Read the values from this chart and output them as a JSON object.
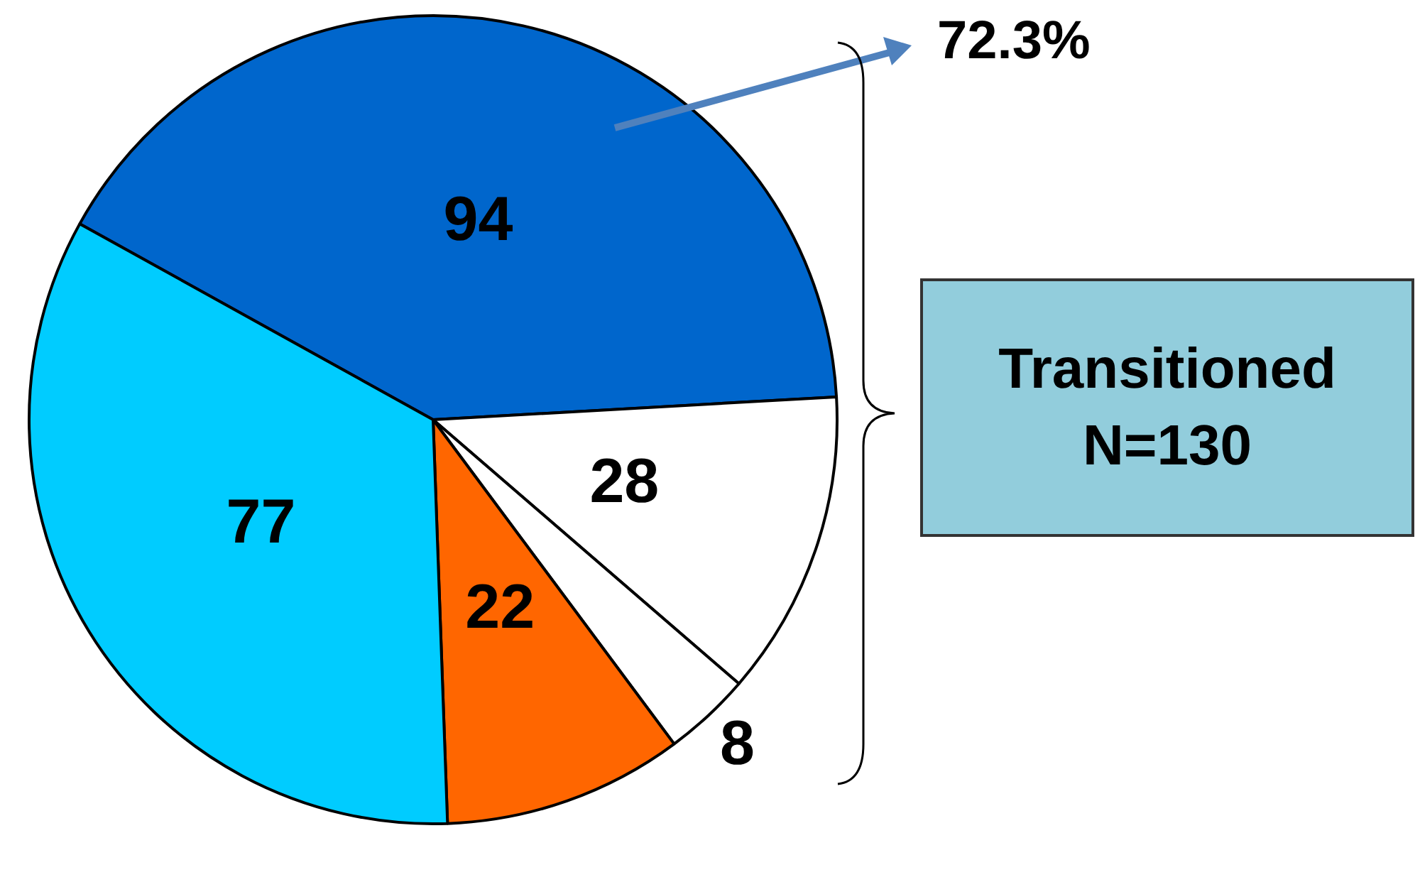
{
  "chart_data": {
    "type": "pie",
    "categories": [
      null,
      null,
      null,
      null,
      null
    ],
    "values": [
      94,
      28,
      8,
      22,
      77
    ],
    "colors": [
      "#0066cc",
      "#ffffff",
      "#ffffff",
      "#ff6600",
      "#00ccff"
    ],
    "data_labels": true,
    "legend": false,
    "annotations": [
      "72.3%",
      "Transitioned N=130"
    ]
  }
}
